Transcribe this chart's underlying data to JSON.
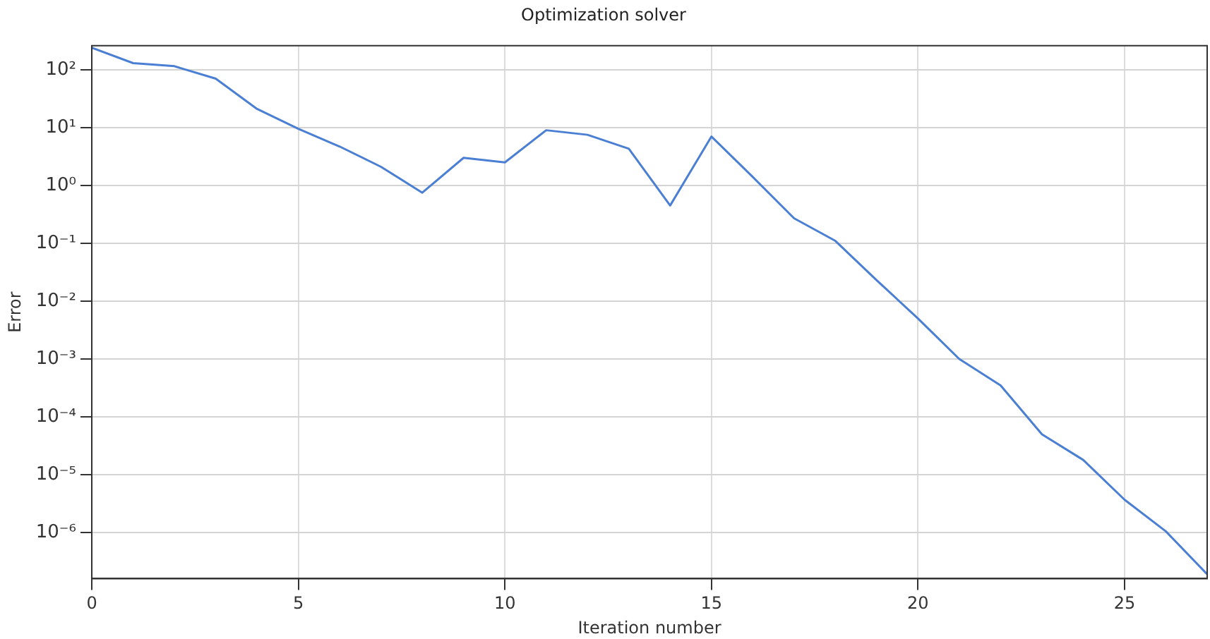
{
  "chart_data": {
    "type": "line",
    "title": "Optimization solver",
    "xlabel": "Iteration number",
    "ylabel": "Error",
    "x": [
      0,
      1,
      2,
      3,
      4,
      5,
      6,
      7,
      8,
      9,
      10,
      11,
      12,
      13,
      14,
      15,
      16,
      17,
      18,
      19,
      20,
      21,
      22,
      23,
      24,
      25,
      26,
      27
    ],
    "series": [
      {
        "color": "#4a7fd4",
        "values": [
          240,
          130,
          115,
          70,
          21,
          9.5,
          4.7,
          2.1,
          0.75,
          3,
          2.5,
          9,
          7.5,
          4.3,
          0.45,
          7,
          1.4,
          0.27,
          0.11,
          0.023,
          0.005,
          0.001,
          0.00035,
          5e-05,
          1.8e-05,
          3.7e-06,
          1.05e-06,
          1.9e-07
        ]
      }
    ],
    "log": "y",
    "xlim": [
      0,
      27
    ],
    "xticks": [
      0,
      5,
      10,
      15,
      20,
      25
    ],
    "ylim": [
      1.6e-07,
      260
    ],
    "yticks": [
      {
        "value": 1e-06,
        "label": "10⁻⁶"
      },
      {
        "value": 1e-05,
        "label": "10⁻⁵"
      },
      {
        "value": 0.0001,
        "label": "10⁻⁴"
      },
      {
        "value": 0.001,
        "label": "10⁻³"
      },
      {
        "value": 0.01,
        "label": "10⁻²"
      },
      {
        "value": 0.1,
        "label": "10⁻¹"
      },
      {
        "value": 1,
        "label": "10⁰"
      },
      {
        "value": 10,
        "label": "10¹"
      },
      {
        "value": 100,
        "label": "10²"
      }
    ],
    "grid": true,
    "marker": "none",
    "line_style": "solid"
  }
}
